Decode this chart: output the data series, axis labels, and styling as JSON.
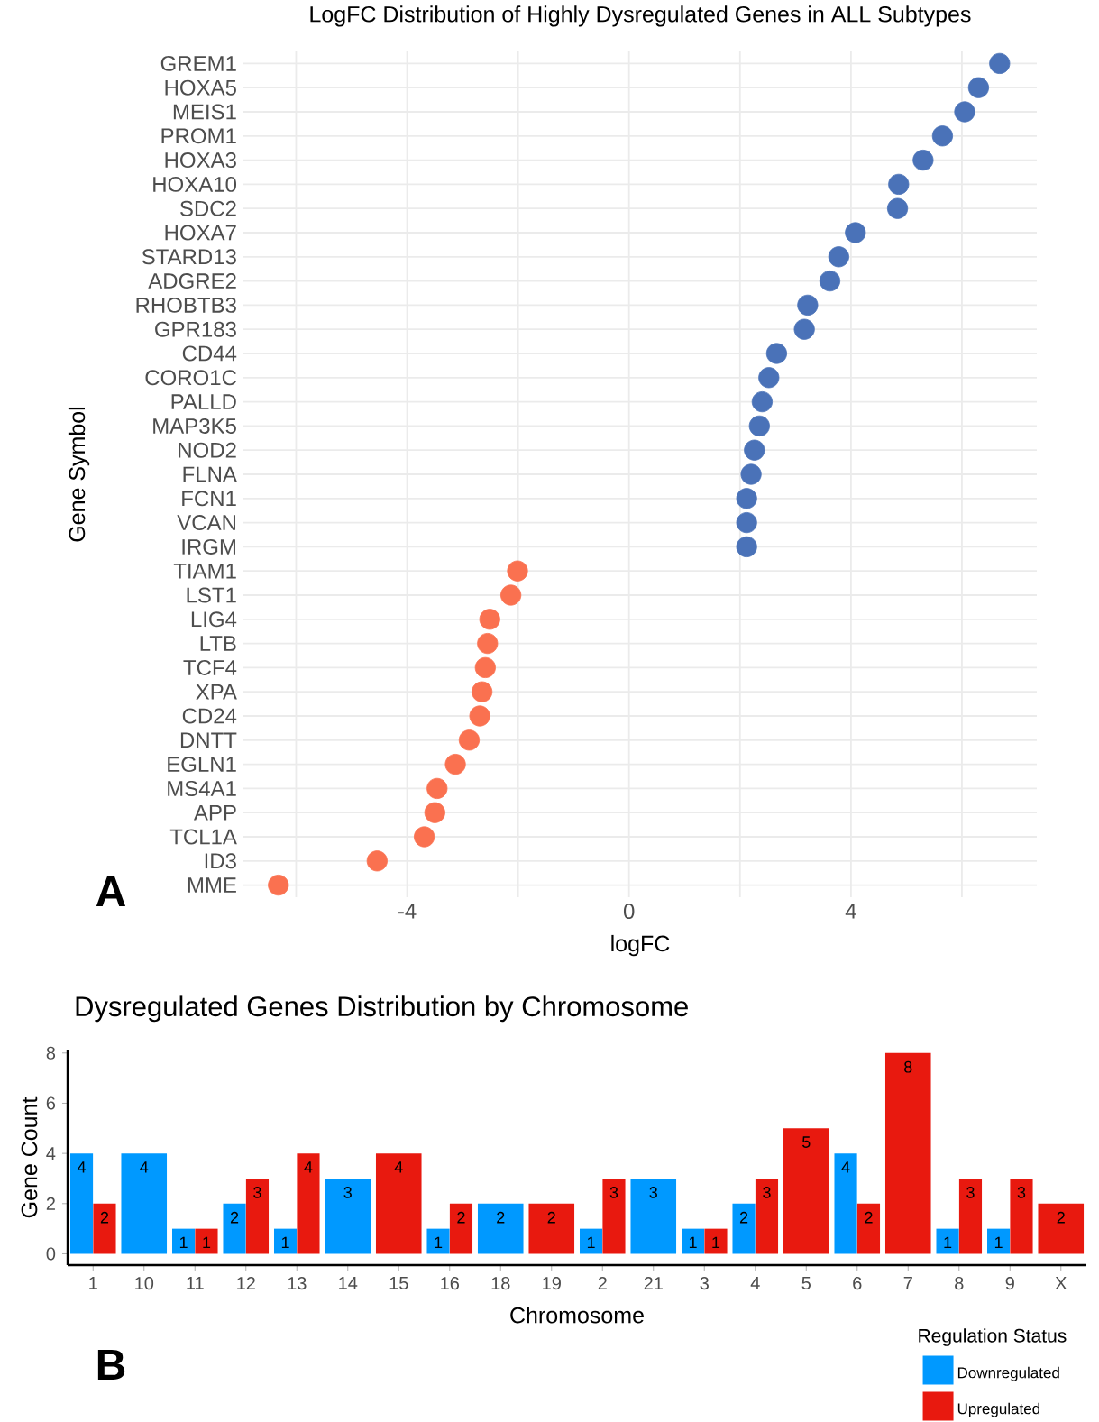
{
  "chart_data": [
    {
      "type": "scatter",
      "orientation": "horizontal",
      "title": "LogFC Distribution of Highly Dysregulated Genes in ALL Subtypes",
      "xlabel": "logFC",
      "ylabel": "Gene Symbol",
      "categories": [
        "GREM1",
        "HOXA5",
        "MEIS1",
        "PROM1",
        "HOXA3",
        "HOXA10",
        "SDC2",
        "HOXA7",
        "STARD13",
        "ADGRE2",
        "RHOBTB3",
        "GPR183",
        "CD44",
        "CORO1C",
        "PALLD",
        "MAP3K5",
        "NOD2",
        "FLNA",
        "FCN1",
        "VCAN",
        "IRGM",
        "TIAM1",
        "LST1",
        "LIG4",
        "LTB",
        "TCF4",
        "XPA",
        "CD24",
        "DNTT",
        "EGLN1",
        "MS4A1",
        "APP",
        "TCL1A",
        "ID3",
        "MME"
      ],
      "series": [
        {
          "color": "#4a72b8",
          "values": [
            6.68,
            6.3,
            6.05,
            5.65,
            5.3,
            4.86,
            4.84,
            4.08,
            3.78,
            3.62,
            3.22,
            3.16,
            2.66,
            2.52,
            2.4,
            2.35,
            2.26,
            2.2,
            2.12,
            2.12,
            2.12,
            null,
            null,
            null,
            null,
            null,
            null,
            null,
            null,
            null,
            null,
            null,
            null,
            null,
            null
          ]
        },
        {
          "color": "#fa7150",
          "values": [
            null,
            null,
            null,
            null,
            null,
            null,
            null,
            null,
            null,
            null,
            null,
            null,
            null,
            null,
            null,
            null,
            null,
            null,
            null,
            null,
            null,
            -2.01,
            -2.13,
            -2.51,
            -2.55,
            -2.59,
            -2.65,
            -2.69,
            -2.88,
            -3.13,
            -3.46,
            -3.5,
            -3.69,
            -4.54,
            -6.32
          ]
        }
      ],
      "xlim": [
        -6.95,
        7.35
      ],
      "xticks": [
        {
          "value": -6,
          "label": null
        },
        -4,
        {
          "value": -2,
          "label": null
        },
        0,
        {
          "value": 2,
          "label": null
        },
        4,
        {
          "value": 6,
          "label": null
        }
      ],
      "grid": true,
      "marker": "circle",
      "annotations": [
        "A"
      ]
    },
    {
      "type": "bar",
      "title": "Dysregulated Genes Distribution by Chromosome",
      "xlabel": "Chromosome",
      "ylabel": "Gene Count",
      "legend_title": "Regulation Status",
      "categories": [
        "1",
        "10",
        "11",
        "12",
        "13",
        "14",
        "15",
        "16",
        "18",
        "19",
        "2",
        "21",
        "3",
        "4",
        "5",
        "6",
        "7",
        "8",
        "9",
        "X"
      ],
      "series": [
        {
          "name": "Downregulated",
          "color": "#0099ff",
          "values": [
            4,
            4,
            1,
            2,
            1,
            3,
            null,
            1,
            2,
            null,
            1,
            3,
            1,
            2,
            null,
            4,
            null,
            1,
            1,
            null
          ]
        },
        {
          "name": "Upregulated",
          "color": "#e8190f",
          "values": [
            2,
            null,
            1,
            3,
            4,
            null,
            4,
            2,
            null,
            2,
            3,
            null,
            1,
            3,
            5,
            2,
            8,
            3,
            3,
            2
          ]
        }
      ],
      "ylim": [
        -0.45,
        8.1
      ],
      "yticks": [
        0,
        2,
        4,
        6,
        8
      ],
      "data_labels": true,
      "legend": "bottom right",
      "grid": false,
      "annotations": [
        "B"
      ]
    }
  ]
}
